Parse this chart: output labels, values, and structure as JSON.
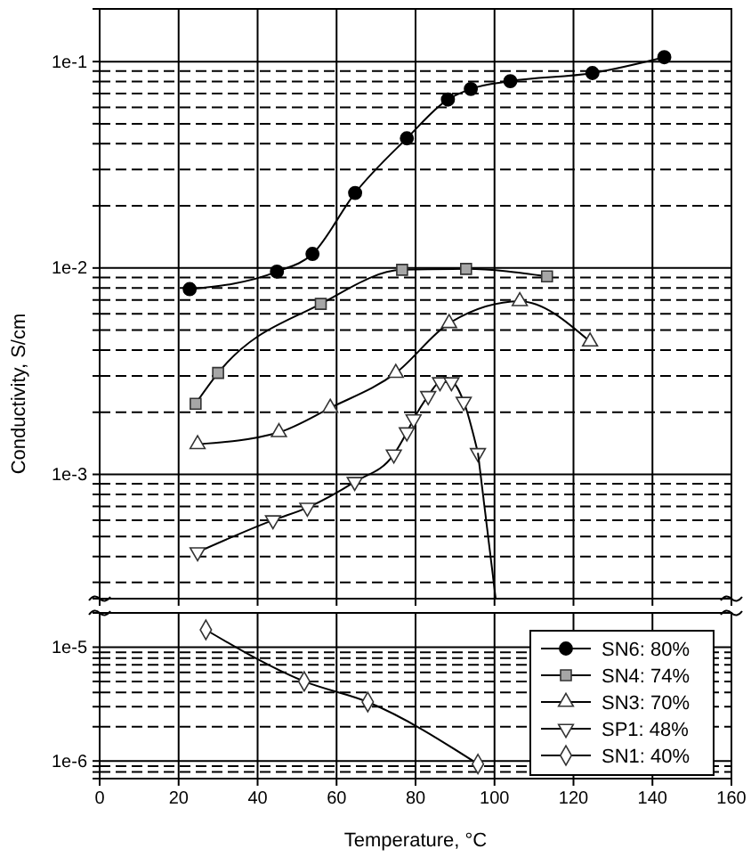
{
  "chart_data": [
    {
      "type": "line",
      "ylabel": "Conductivity, S/cm",
      "log": "y",
      "grid": true,
      "tick_labels": "y",
      "legend": "bottom right",
      "xlim": [
        0,
        160
      ],
      "xticks": [
        0,
        20,
        40,
        60,
        80,
        100,
        120,
        140,
        160
      ],
      "ylim": [
        0.00025,
        0.18
      ],
      "yticks": [
        {
          "value": 0.0003,
          "label": null
        },
        {
          "value": 0.0004,
          "label": null
        },
        {
          "value": 0.0005,
          "label": null
        },
        {
          "value": 0.0006,
          "label": null
        },
        {
          "value": 0.0007,
          "label": null
        },
        {
          "value": 0.0008,
          "label": null
        },
        {
          "value": 0.0009,
          "label": null
        },
        {
          "value": 0.001,
          "label": "1e-3"
        },
        {
          "value": 0.002,
          "label": null
        },
        {
          "value": 0.003,
          "label": null
        },
        {
          "value": 0.004,
          "label": null
        },
        {
          "value": 0.005,
          "label": null
        },
        {
          "value": 0.006,
          "label": null
        },
        {
          "value": 0.007,
          "label": null
        },
        {
          "value": 0.008,
          "label": null
        },
        {
          "value": 0.009,
          "label": null
        },
        {
          "value": 0.01,
          "label": "1e-2"
        },
        {
          "value": 0.02,
          "label": null
        },
        {
          "value": 0.03,
          "label": null
        },
        {
          "value": 0.04,
          "label": null
        },
        {
          "value": 0.05,
          "label": null
        },
        {
          "value": 0.06,
          "label": null
        },
        {
          "value": 0.07,
          "label": null
        },
        {
          "value": 0.08,
          "label": null
        },
        {
          "value": 0.09,
          "label": null
        },
        {
          "value": 0.1,
          "label": "1e-1"
        }
      ],
      "series": [
        {
          "name": "SN6: 80%",
          "color": "#000000",
          "marker": "circle",
          "x": [
            22.8,
            44.9,
            53.9,
            64.7,
            77.8,
            88.2,
            94,
            104,
            124.8,
            143
          ],
          "values": [
            0.0079,
            0.0096,
            0.0117,
            0.0231,
            0.0425,
            0.0655,
            0.0737,
            0.0804,
            0.088,
            0.105
          ]
        },
        {
          "name": "SN4: 74%",
          "color": "#a6a6a6",
          "marker": "square",
          "x": [
            24.3,
            30,
            56,
            76.6,
            92.8,
            113.3
          ],
          "values": [
            0.0022,
            0.0031,
            0.0067,
            0.0098,
            0.0099,
            0.0091
          ]
        },
        {
          "name": "SN3: 70%",
          "color": "#ffffff",
          "marker": "triangle",
          "x": [
            24.8,
            45.4,
            58.4,
            75,
            88.5,
            106.4,
            124.2
          ],
          "values": [
            0.0014,
            0.0016,
            0.0021,
            0.0031,
            0.0054,
            0.0069,
            0.0044
          ]
        },
        {
          "name": "SP1: 48%",
          "color": "#ffffff",
          "marker": "triangle-down",
          "x": [
            24.8,
            43.9,
            52.6,
            64.6,
            74.5,
            77.8,
            79.5,
            83.2,
            86.2,
            89.1,
            92.2,
            95.8
          ],
          "values": [
            0.00042,
            0.0006,
            0.00069,
            0.00092,
            0.00125,
            0.0016,
            0.00185,
            0.0024,
            0.0028,
            0.0028,
            0.00225,
            0.00127
          ]
        },
        {
          "color": "#000000",
          "marker": "none",
          "x": [
            95.8,
            100.3
          ],
          "values": [
            0.00127,
            0.00025
          ]
        }
      ]
    },
    {
      "type": "line",
      "xlabel": "Temperature, °C",
      "log": "y",
      "grid": true,
      "legend": "bottom right",
      "xlim": [
        0,
        160
      ],
      "xticks": [
        0,
        20,
        40,
        60,
        80,
        100,
        120,
        140,
        160
      ],
      "ylim": [
        7e-07,
        2e-05
      ],
      "yticks": [
        {
          "value": 8e-07,
          "label": null
        },
        {
          "value": 9e-07,
          "label": null
        },
        {
          "value": 1e-06,
          "label": "1e-6"
        },
        {
          "value": 2e-06,
          "label": null
        },
        {
          "value": 3e-06,
          "label": null
        },
        {
          "value": 4e-06,
          "label": null
        },
        {
          "value": 5e-06,
          "label": null
        },
        {
          "value": 6e-06,
          "label": null
        },
        {
          "value": 7e-06,
          "label": null
        },
        {
          "value": 8e-06,
          "label": null
        },
        {
          "value": 9e-06,
          "label": null
        },
        {
          "value": 1e-05,
          "label": "1e-5"
        }
      ],
      "series": [
        {
          "name": "SN1: 40%",
          "color": "#ffffff",
          "marker": "diamond",
          "x": [
            26.9,
            51.8,
            67.9,
            95.8
          ],
          "values": [
            1.42e-05,
            5e-06,
            3.3e-06,
            9.4e-07
          ]
        }
      ]
    }
  ]
}
